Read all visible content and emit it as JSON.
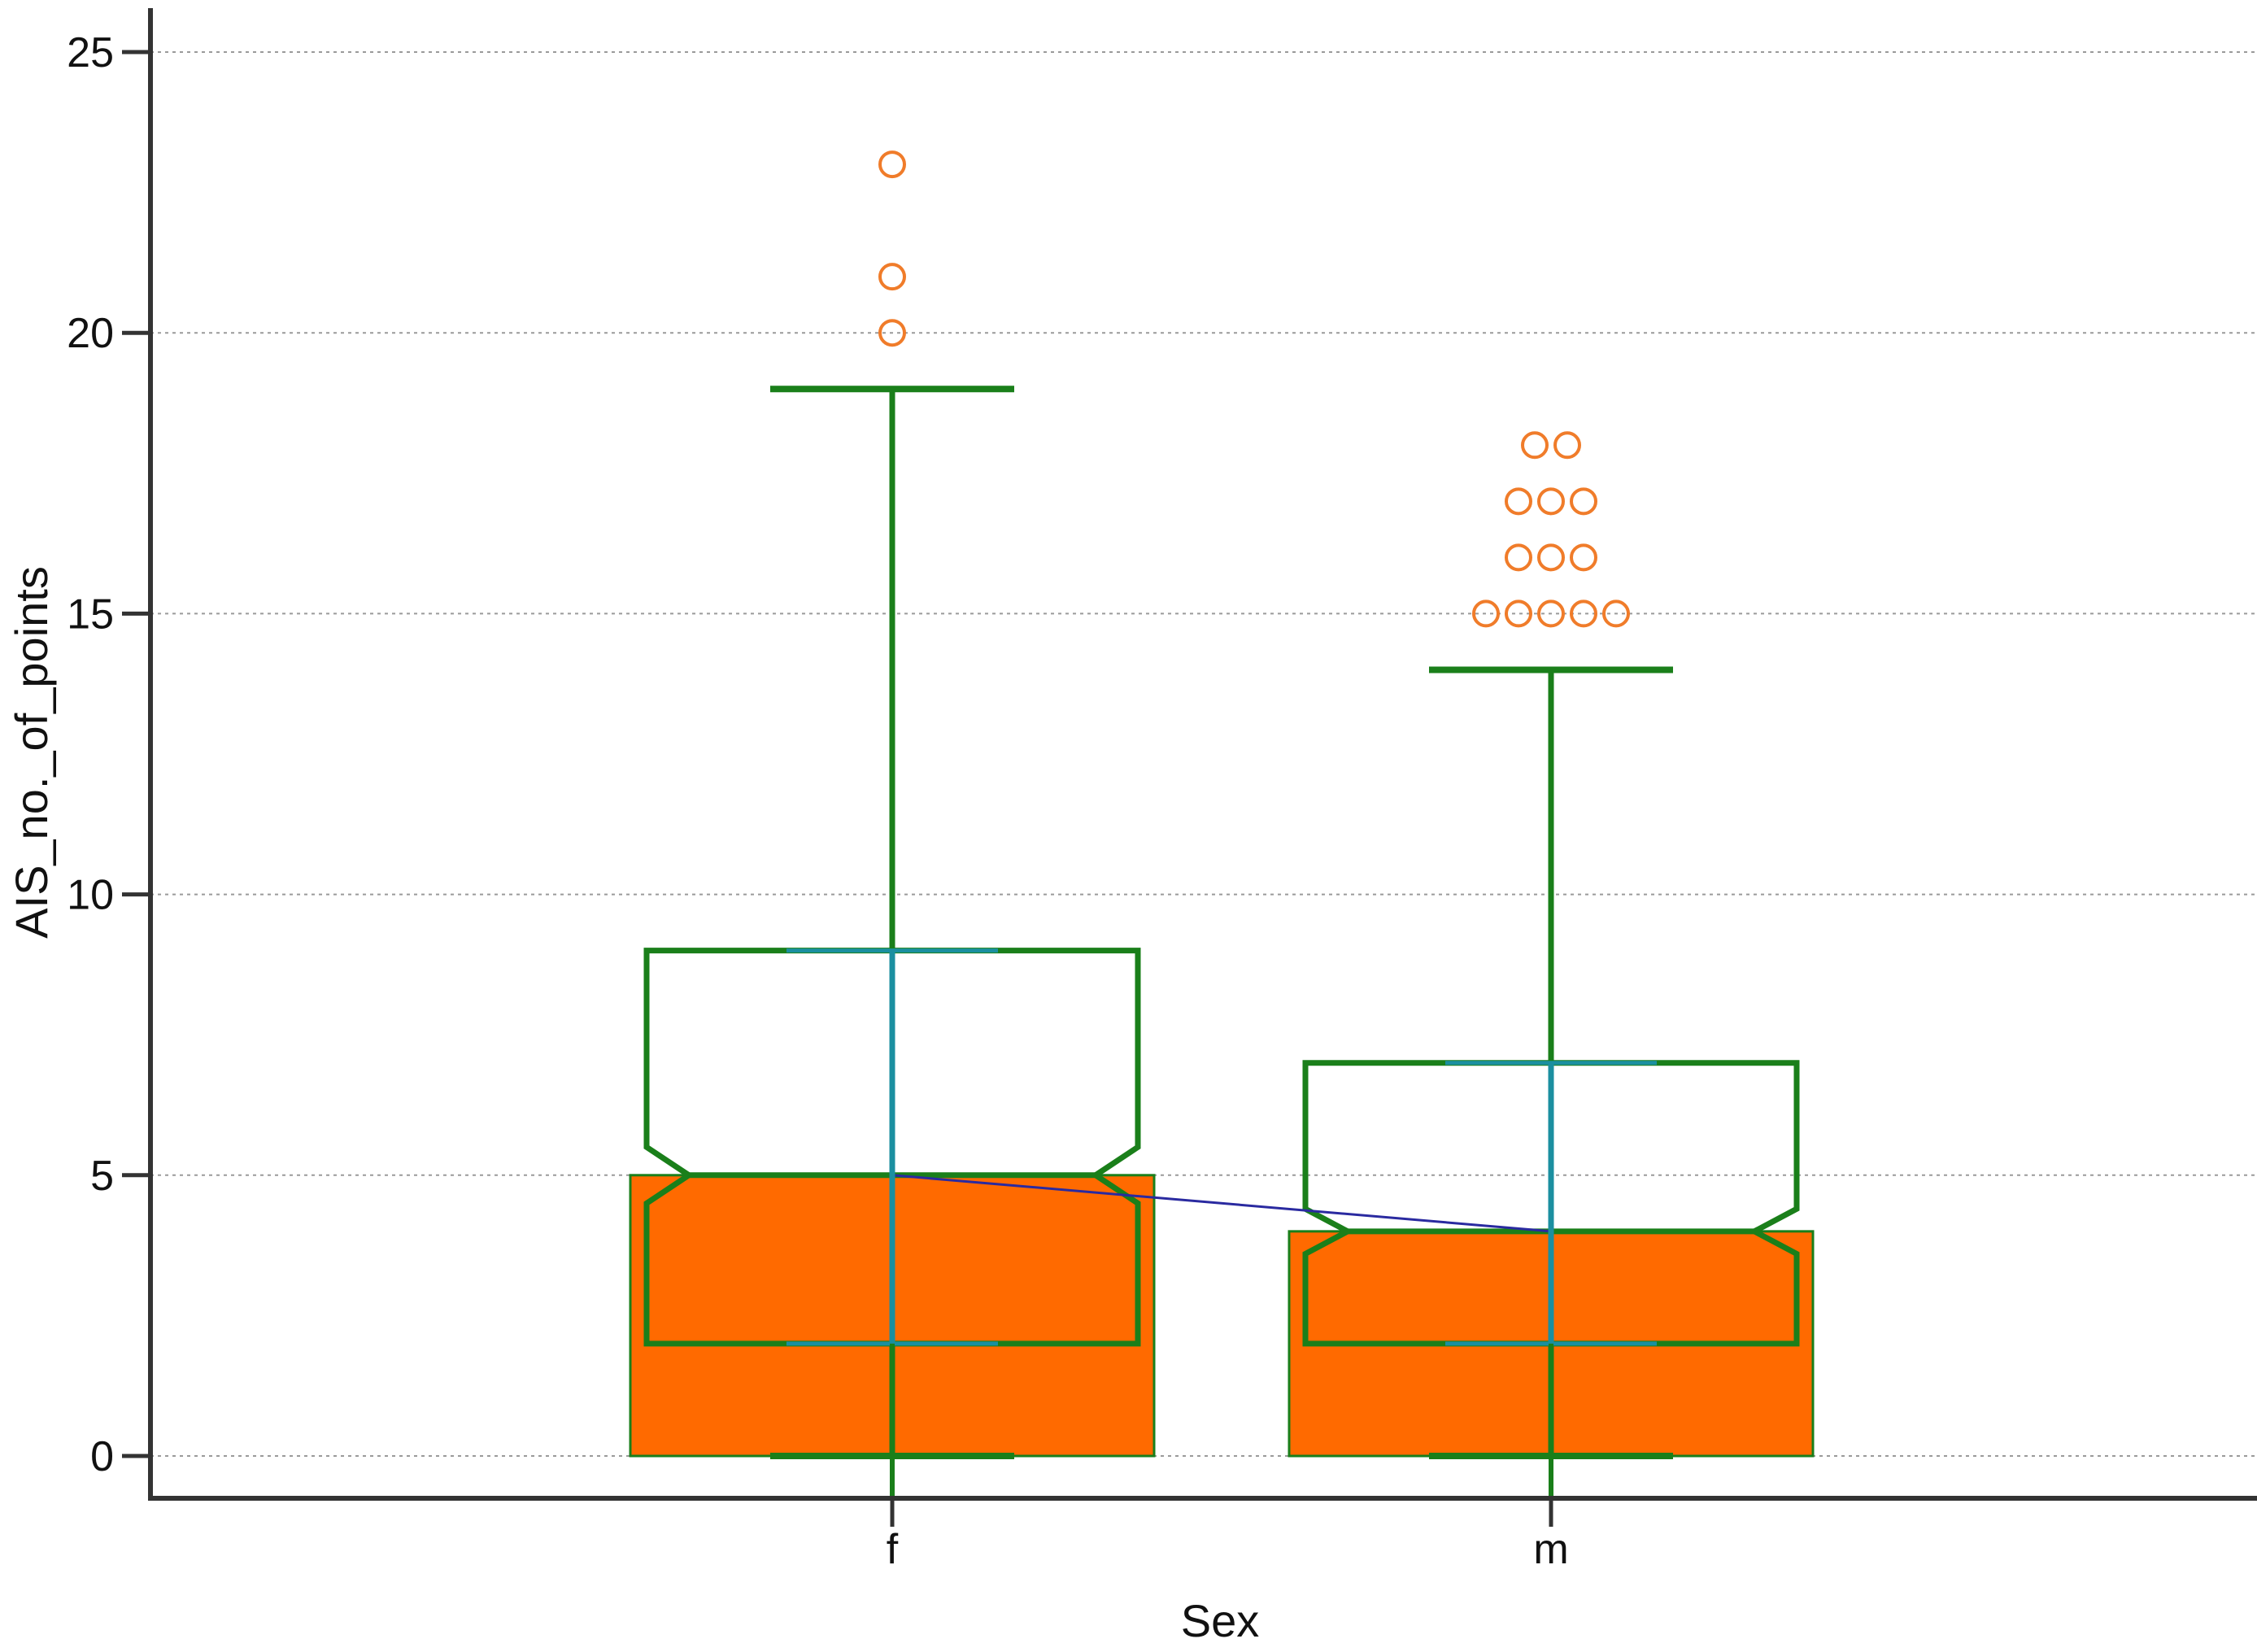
{
  "chart_data": {
    "type": "box",
    "title": "",
    "xlabel": "Sex",
    "ylabel": "AIS_no._of_points",
    "ylim": [
      0,
      25
    ],
    "yticks": [
      0,
      5,
      10,
      15,
      20,
      25
    ],
    "grid": "horizontal-dotted",
    "categories": [
      "f",
      "m"
    ],
    "series": [
      {
        "category": "f",
        "mean_bar": 5,
        "whisker_low": 0,
        "q1": 2,
        "median": 5,
        "q3": 9,
        "whisker_high": 19,
        "notch_low": 4.5,
        "notch_high": 5.5,
        "outliers": [
          20,
          21,
          23
        ]
      },
      {
        "category": "m",
        "mean_bar": 4,
        "whisker_low": 0,
        "q1": 2,
        "median": 4,
        "q3": 7,
        "whisker_high": 14,
        "notch_low": 3.6,
        "notch_high": 4.4,
        "outliers": [
          15,
          15,
          15,
          15,
          15,
          16,
          16,
          16,
          17,
          17,
          17,
          18,
          18
        ]
      }
    ],
    "median_connector": true,
    "colors": {
      "bar_fill": "#ff6a00",
      "box_stroke": "#1a7f1a",
      "whisker": "#1a7f1a",
      "center_line": "#1b8fa0",
      "outlier": "#f07c2a",
      "connector": "#2a2aa0",
      "axis": "#333333",
      "grid": "#9a9a9a"
    }
  }
}
